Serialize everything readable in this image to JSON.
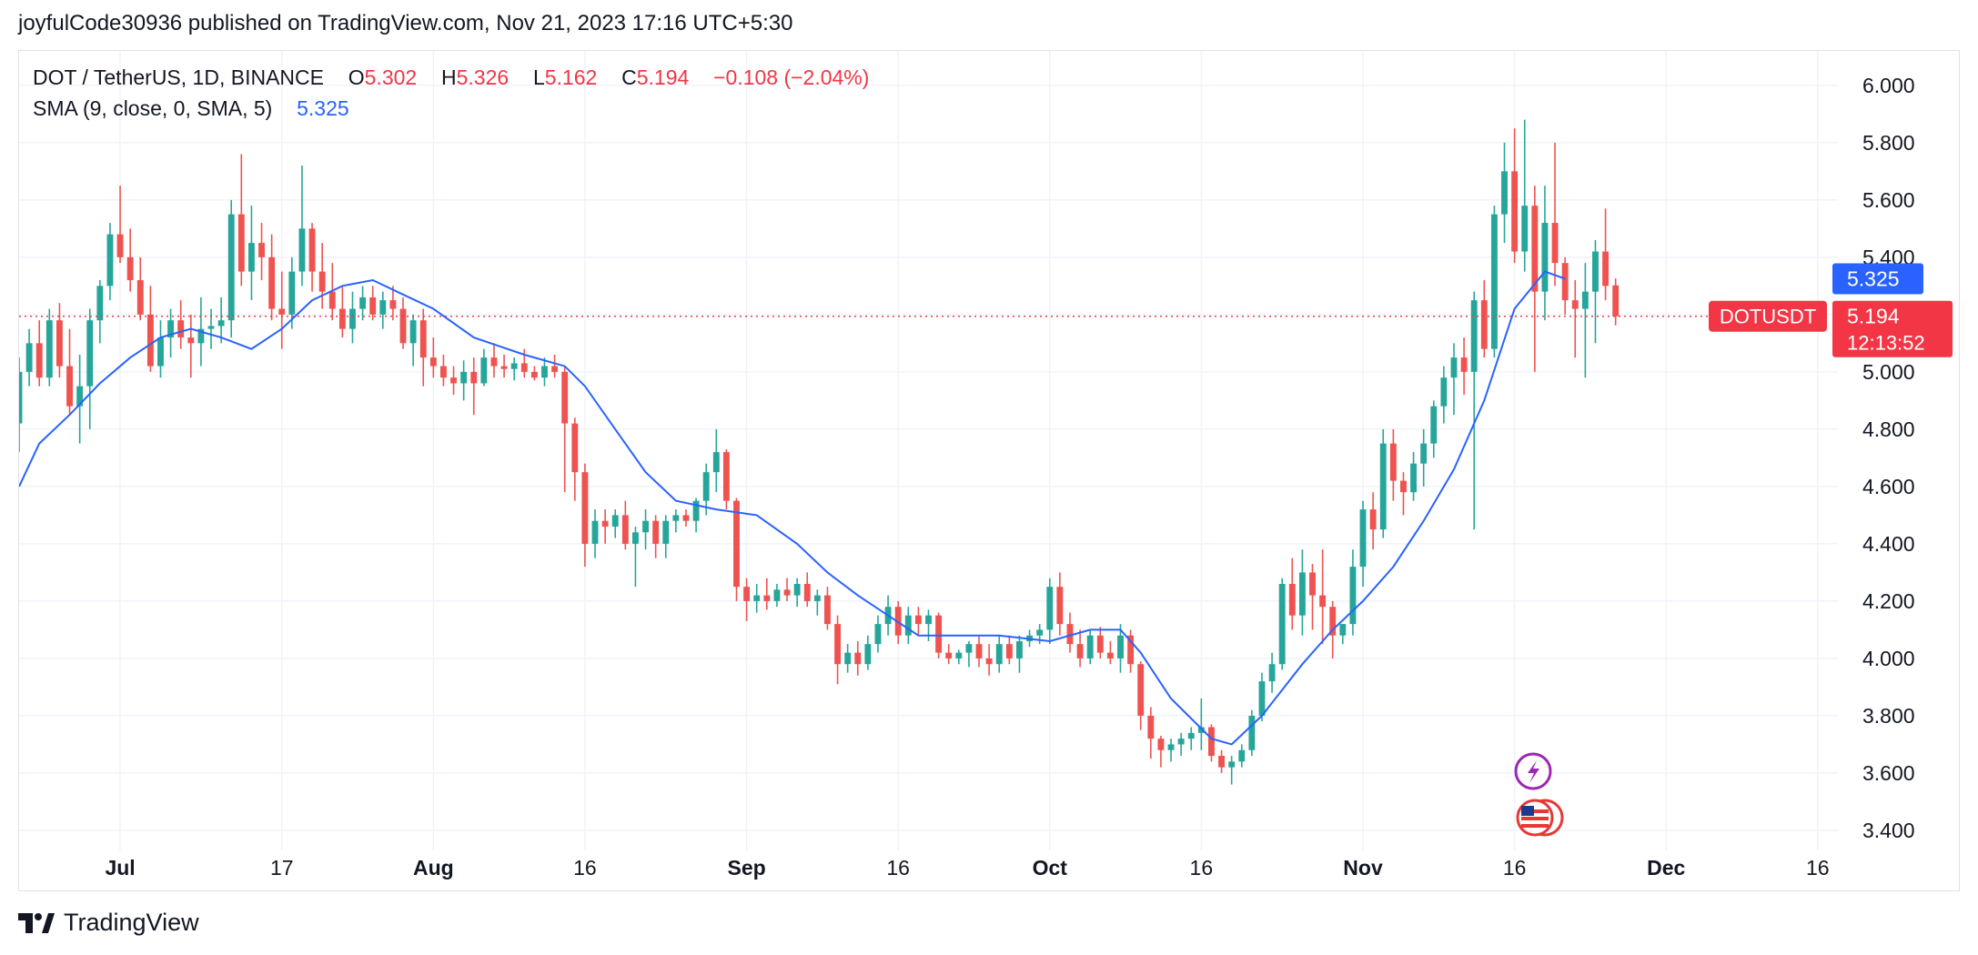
{
  "header": {
    "published_text": "joyfulCode30936 published on TradingView.com, Nov 21, 2023 17:16 UTC+5:30"
  },
  "legend": {
    "symbol": "DOT / TetherUS, 1D, BINANCE",
    "o_label": "O",
    "o_value": "5.302",
    "h_label": "H",
    "h_value": "5.326",
    "l_label": "L",
    "l_value": "5.162",
    "c_label": "C",
    "c_value": "5.194",
    "change": "−0.108 (−2.04%)",
    "sma_label": "SMA (9, close, 0, SMA, 5)",
    "sma_value": "5.325"
  },
  "price_labels": {
    "ticker": "DOTUSDT",
    "last_price": "5.194",
    "countdown": "12:13:52",
    "sma_value": "5.325"
  },
  "footer": {
    "brand": "TradingView"
  },
  "colors": {
    "up": "#26a69a",
    "down": "#ef5350",
    "sma": "#2962ff",
    "grid": "#f0f3fa",
    "axis_text": "#131722",
    "price_line": "#f23645"
  },
  "event_icons": [
    "lightning-icon",
    "us-flag-icon"
  ],
  "chart_data": {
    "type": "candlestick",
    "symbol": "DOT / TetherUS",
    "interval": "1D",
    "exchange": "BINANCE",
    "y_ticks": [
      "6.000",
      "5.800",
      "5.600",
      "5.400",
      "5.200",
      "5.000",
      "4.800",
      "4.600",
      "4.400",
      "4.200",
      "4.000",
      "3.800",
      "3.600",
      "3.400"
    ],
    "x_ticks": [
      {
        "date": "2023-07-01",
        "label": "Jul"
      },
      {
        "date": "2023-07-17",
        "label": "17"
      },
      {
        "date": "2023-08-01",
        "label": "Aug"
      },
      {
        "date": "2023-08-16",
        "label": "16"
      },
      {
        "date": "2023-09-01",
        "label": "Sep"
      },
      {
        "date": "2023-09-16",
        "label": "16"
      },
      {
        "date": "2023-10-01",
        "label": "Oct"
      },
      {
        "date": "2023-10-16",
        "label": "16"
      },
      {
        "date": "2023-11-01",
        "label": "Nov"
      },
      {
        "date": "2023-11-16",
        "label": "16"
      },
      {
        "date": "2023-12-01",
        "label": "Dec"
      },
      {
        "date": "2023-12-16",
        "label": "16"
      }
    ],
    "x_range": [
      "2023-06-21",
      "2023-12-18"
    ],
    "y_range": [
      3.33,
      6.12
    ],
    "grid": true,
    "start_date": "2023-06-21",
    "candles": [
      [
        4.82,
        5.05,
        4.72,
        5.0
      ],
      [
        5.0,
        5.15,
        4.95,
        5.1
      ],
      [
        5.1,
        5.18,
        4.95,
        4.98
      ],
      [
        4.98,
        5.22,
        4.95,
        5.18
      ],
      [
        5.18,
        5.24,
        4.98,
        5.02
      ],
      [
        5.02,
        5.15,
        4.85,
        4.88
      ],
      [
        4.88,
        5.06,
        4.75,
        4.95
      ],
      [
        4.95,
        5.22,
        4.8,
        5.18
      ],
      [
        5.18,
        5.32,
        5.1,
        5.3
      ],
      [
        5.3,
        5.52,
        5.25,
        5.48
      ],
      [
        5.48,
        5.65,
        5.38,
        5.4
      ],
      [
        5.4,
        5.5,
        5.28,
        5.32
      ],
      [
        5.32,
        5.4,
        5.18,
        5.2
      ],
      [
        5.2,
        5.3,
        5.0,
        5.02
      ],
      [
        5.02,
        5.18,
        4.98,
        5.12
      ],
      [
        5.12,
        5.22,
        5.05,
        5.18
      ],
      [
        5.18,
        5.25,
        5.08,
        5.12
      ],
      [
        5.12,
        5.2,
        4.98,
        5.1
      ],
      [
        5.1,
        5.26,
        5.02,
        5.15
      ],
      [
        5.15,
        5.22,
        5.08,
        5.16
      ],
      [
        5.16,
        5.26,
        5.1,
        5.18
      ],
      [
        5.18,
        5.6,
        5.12,
        5.55
      ],
      [
        5.55,
        5.76,
        5.3,
        5.35
      ],
      [
        5.35,
        5.58,
        5.25,
        5.45
      ],
      [
        5.45,
        5.52,
        5.32,
        5.4
      ],
      [
        5.4,
        5.48,
        5.18,
        5.22
      ],
      [
        5.22,
        5.35,
        5.08,
        5.2
      ],
      [
        5.2,
        5.4,
        5.15,
        5.35
      ],
      [
        5.35,
        5.72,
        5.3,
        5.5
      ],
      [
        5.5,
        5.52,
        5.28,
        5.35
      ],
      [
        5.35,
        5.45,
        5.22,
        5.28
      ],
      [
        5.28,
        5.38,
        5.18,
        5.22
      ],
      [
        5.22,
        5.3,
        5.12,
        5.15
      ],
      [
        5.15,
        5.28,
        5.1,
        5.22
      ],
      [
        5.22,
        5.3,
        5.18,
        5.26
      ],
      [
        5.26,
        5.3,
        5.18,
        5.2
      ],
      [
        5.2,
        5.28,
        5.15,
        5.25
      ],
      [
        5.25,
        5.3,
        5.18,
        5.22
      ],
      [
        5.22,
        5.26,
        5.08,
        5.1
      ],
      [
        5.1,
        5.2,
        5.02,
        5.18
      ],
      [
        5.18,
        5.22,
        4.95,
        5.05
      ],
      [
        5.05,
        5.12,
        4.98,
        5.02
      ],
      [
        5.02,
        5.06,
        4.95,
        4.98
      ],
      [
        4.98,
        5.02,
        4.92,
        4.96
      ],
      [
        4.96,
        5.04,
        4.9,
        5.0
      ],
      [
        5.0,
        5.05,
        4.85,
        4.96
      ],
      [
        4.96,
        5.08,
        4.95,
        5.05
      ],
      [
        5.05,
        5.1,
        4.98,
        5.02
      ],
      [
        5.02,
        5.06,
        4.98,
        5.01
      ],
      [
        5.01,
        5.05,
        4.97,
        5.03
      ],
      [
        5.03,
        5.08,
        4.98,
        5.0
      ],
      [
        5.0,
        5.02,
        4.97,
        4.98
      ],
      [
        4.98,
        5.05,
        4.95,
        5.02
      ],
      [
        5.02,
        5.06,
        4.98,
        5.0
      ],
      [
        5.0,
        5.02,
        4.58,
        4.82
      ],
      [
        4.82,
        4.84,
        4.55,
        4.65
      ],
      [
        4.65,
        4.68,
        4.32,
        4.4
      ],
      [
        4.4,
        4.52,
        4.35,
        4.48
      ],
      [
        4.48,
        4.52,
        4.4,
        4.46
      ],
      [
        4.46,
        4.52,
        4.42,
        4.5
      ],
      [
        4.5,
        4.55,
        4.38,
        4.4
      ],
      [
        4.4,
        4.46,
        4.25,
        4.44
      ],
      [
        4.44,
        4.52,
        4.38,
        4.48
      ],
      [
        4.48,
        4.5,
        4.35,
        4.4
      ],
      [
        4.4,
        4.5,
        4.35,
        4.48
      ],
      [
        4.48,
        4.52,
        4.44,
        4.5
      ],
      [
        4.5,
        4.52,
        4.46,
        4.48
      ],
      [
        4.48,
        4.56,
        4.44,
        4.55
      ],
      [
        4.55,
        4.68,
        4.5,
        4.65
      ],
      [
        4.65,
        4.8,
        4.58,
        4.72
      ],
      [
        4.72,
        4.73,
        4.52,
        4.55
      ],
      [
        4.55,
        4.56,
        4.2,
        4.25
      ],
      [
        4.25,
        4.28,
        4.13,
        4.2
      ],
      [
        4.2,
        4.26,
        4.16,
        4.22
      ],
      [
        4.22,
        4.28,
        4.17,
        4.2
      ],
      [
        4.2,
        4.26,
        4.18,
        4.24
      ],
      [
        4.24,
        4.28,
        4.2,
        4.22
      ],
      [
        4.22,
        4.28,
        4.18,
        4.26
      ],
      [
        4.26,
        4.3,
        4.18,
        4.2
      ],
      [
        4.2,
        4.24,
        4.15,
        4.22
      ],
      [
        4.22,
        4.25,
        4.1,
        4.12
      ],
      [
        4.12,
        4.15,
        3.91,
        3.98
      ],
      [
        3.98,
        4.05,
        3.95,
        4.02
      ],
      [
        4.02,
        4.06,
        3.94,
        3.98
      ],
      [
        3.98,
        4.08,
        3.96,
        4.05
      ],
      [
        4.05,
        4.15,
        4.02,
        4.12
      ],
      [
        4.12,
        4.22,
        4.08,
        4.18
      ],
      [
        4.18,
        4.2,
        4.05,
        4.08
      ],
      [
        4.08,
        4.18,
        4.05,
        4.15
      ],
      [
        4.15,
        4.18,
        4.08,
        4.12
      ],
      [
        4.12,
        4.17,
        4.06,
        4.15
      ],
      [
        4.15,
        4.16,
        4.0,
        4.02
      ],
      [
        4.02,
        4.05,
        3.98,
        4.0
      ],
      [
        4.0,
        4.03,
        3.98,
        4.02
      ],
      [
        4.02,
        4.06,
        3.97,
        4.05
      ],
      [
        4.05,
        4.08,
        3.97,
        4.0
      ],
      [
        4.0,
        4.05,
        3.94,
        3.98
      ],
      [
        3.98,
        4.08,
        3.95,
        4.05
      ],
      [
        4.05,
        4.08,
        3.98,
        4.0
      ],
      [
        4.0,
        4.08,
        3.95,
        4.06
      ],
      [
        4.06,
        4.1,
        4.04,
        4.08
      ],
      [
        4.08,
        4.12,
        4.05,
        4.1
      ],
      [
        4.1,
        4.28,
        4.05,
        4.25
      ],
      [
        4.25,
        4.3,
        4.08,
        4.12
      ],
      [
        4.12,
        4.16,
        4.02,
        4.05
      ],
      [
        4.05,
        4.1,
        3.97,
        4.0
      ],
      [
        4.0,
        4.1,
        3.98,
        4.08
      ],
      [
        4.08,
        4.11,
        4.0,
        4.02
      ],
      [
        4.02,
        4.06,
        3.98,
        4.0
      ],
      [
        4.0,
        4.12,
        3.95,
        4.08
      ],
      [
        4.08,
        4.1,
        3.95,
        3.98
      ],
      [
        3.98,
        3.99,
        3.75,
        3.8
      ],
      [
        3.8,
        3.83,
        3.65,
        3.72
      ],
      [
        3.72,
        3.73,
        3.62,
        3.68
      ],
      [
        3.68,
        3.72,
        3.64,
        3.7
      ],
      [
        3.7,
        3.74,
        3.66,
        3.72
      ],
      [
        3.72,
        3.76,
        3.68,
        3.74
      ],
      [
        3.74,
        3.86,
        3.68,
        3.76
      ],
      [
        3.76,
        3.77,
        3.64,
        3.66
      ],
      [
        3.66,
        3.68,
        3.6,
        3.62
      ],
      [
        3.62,
        3.66,
        3.56,
        3.64
      ],
      [
        3.64,
        3.7,
        3.62,
        3.68
      ],
      [
        3.68,
        3.82,
        3.66,
        3.8
      ],
      [
        3.8,
        3.95,
        3.78,
        3.92
      ],
      [
        3.92,
        4.02,
        3.88,
        3.98
      ],
      [
        3.98,
        4.28,
        3.96,
        4.26
      ],
      [
        4.26,
        4.35,
        4.1,
        4.15
      ],
      [
        4.15,
        4.38,
        4.08,
        4.3
      ],
      [
        4.3,
        4.33,
        4.1,
        4.22
      ],
      [
        4.22,
        4.38,
        4.05,
        4.18
      ],
      [
        4.18,
        4.2,
        4.0,
        4.08
      ],
      [
        4.08,
        4.12,
        4.05,
        4.12
      ],
      [
        4.12,
        4.38,
        4.08,
        4.32
      ],
      [
        4.32,
        4.55,
        4.25,
        4.52
      ],
      [
        4.52,
        4.58,
        4.38,
        4.45
      ],
      [
        4.45,
        4.8,
        4.42,
        4.75
      ],
      [
        4.75,
        4.8,
        4.55,
        4.62
      ],
      [
        4.62,
        4.65,
        4.5,
        4.58
      ],
      [
        4.58,
        4.72,
        4.55,
        4.68
      ],
      [
        4.68,
        4.8,
        4.6,
        4.75
      ],
      [
        4.75,
        4.9,
        4.7,
        4.88
      ],
      [
        4.88,
        5.02,
        4.82,
        4.98
      ],
      [
        4.98,
        5.1,
        4.85,
        5.05
      ],
      [
        5.05,
        5.12,
        4.92,
        5.0
      ],
      [
        5.0,
        5.28,
        4.45,
        5.25
      ],
      [
        5.25,
        5.32,
        5.05,
        5.08
      ],
      [
        5.08,
        5.58,
        5.05,
        5.55
      ],
      [
        5.55,
        5.8,
        5.45,
        5.7
      ],
      [
        5.7,
        5.85,
        5.38,
        5.42
      ],
      [
        5.42,
        5.88,
        5.35,
        5.58
      ],
      [
        5.58,
        5.65,
        5.0,
        5.28
      ],
      [
        5.28,
        5.65,
        5.18,
        5.52
      ],
      [
        5.52,
        5.8,
        5.3,
        5.38
      ],
      [
        5.38,
        5.4,
        5.2,
        5.25
      ],
      [
        5.25,
        5.32,
        5.05,
        5.22
      ],
      [
        5.22,
        5.38,
        4.98,
        5.28
      ],
      [
        5.28,
        5.46,
        5.1,
        5.42
      ],
      [
        5.42,
        5.57,
        5.25,
        5.3
      ],
      [
        5.302,
        5.326,
        5.162,
        5.194
      ]
    ],
    "sma": {
      "name": "SMA (9, close, 0, SMA, 5)",
      "x": [
        "2023-06-21",
        "2023-06-23",
        "2023-06-26",
        "2023-06-29",
        "2023-07-02",
        "2023-07-05",
        "2023-07-08",
        "2023-07-11",
        "2023-07-14",
        "2023-07-17",
        "2023-07-20",
        "2023-07-23",
        "2023-07-26",
        "2023-07-29",
        "2023-08-01",
        "2023-08-05",
        "2023-08-10",
        "2023-08-14",
        "2023-08-16",
        "2023-08-19",
        "2023-08-22",
        "2023-08-25",
        "2023-08-29",
        "2023-09-02",
        "2023-09-06",
        "2023-09-09",
        "2023-09-12",
        "2023-09-15",
        "2023-09-18",
        "2023-09-22",
        "2023-09-26",
        "2023-10-01",
        "2023-10-05",
        "2023-10-08",
        "2023-10-10",
        "2023-10-13",
        "2023-10-17",
        "2023-10-19",
        "2023-10-22",
        "2023-10-26",
        "2023-10-29",
        "2023-11-01",
        "2023-11-04",
        "2023-11-07",
        "2023-11-10",
        "2023-11-13",
        "2023-11-16",
        "2023-11-19",
        "2023-11-21"
      ],
      "y": [
        4.6,
        4.75,
        4.85,
        4.96,
        5.05,
        5.12,
        5.15,
        5.12,
        5.08,
        5.15,
        5.25,
        5.3,
        5.32,
        5.27,
        5.22,
        5.12,
        5.06,
        5.02,
        4.95,
        4.8,
        4.65,
        4.55,
        4.52,
        4.5,
        4.4,
        4.3,
        4.22,
        4.15,
        4.08,
        4.08,
        4.08,
        4.06,
        4.1,
        4.1,
        4.02,
        3.86,
        3.72,
        3.7,
        3.8,
        3.98,
        4.1,
        4.2,
        4.32,
        4.48,
        4.66,
        4.9,
        5.22,
        5.35,
        5.325
      ]
    },
    "last_close": 5.194
  }
}
